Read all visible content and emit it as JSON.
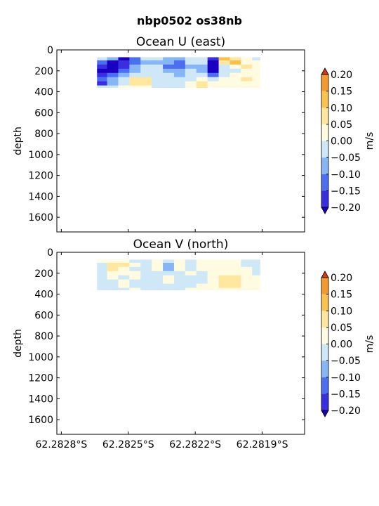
{
  "figure": {
    "title": "nbp0502 os38nb"
  },
  "colors": {
    "levels": [
      "#3a2fe0",
      "#4b6ff0",
      "#86b6f5",
      "#cfe8f7",
      "#fffbe0",
      "#ffe7a0",
      "#f8c24c",
      "#f29a2e",
      "#ea5a16"
    ],
    "under": "#1a00c0",
    "over": "#d83a0a",
    "frame": "#000000"
  },
  "chart_data": [
    {
      "type": "heatmap",
      "title": "Ocean U (east)",
      "xlabel": "",
      "ylabel": "depth",
      "yticks": [
        0,
        200,
        400,
        600,
        800,
        1000,
        1200,
        1400,
        1600
      ],
      "ylim": [
        1740,
        0
      ],
      "xticks": [
        "62.2828°S",
        "62.2825°S",
        "62.2822°S",
        "62.2819°S"
      ],
      "x_tick_values": [
        -62.2828,
        -62.2825,
        -62.2822,
        -62.2819
      ],
      "xlim": [
        -62.28282,
        -62.28171
      ],
      "data_x_range": [
        -62.28264,
        -62.28191
      ],
      "data_depth_range": [
        70,
        360
      ],
      "colorbar": {
        "label": "m/s",
        "ticks": [
          "0.20",
          "0.15",
          "0.10",
          "0.05",
          "0.00",
          "−0.05",
          "−0.10",
          "−0.15",
          "−0.20"
        ],
        "levels": [
          -0.2,
          -0.15,
          -0.1,
          -0.05,
          0.0,
          0.05,
          0.1,
          0.15,
          0.2
        ],
        "extend": "both"
      },
      "depths": [
        80,
        120,
        160,
        200,
        240,
        280,
        320,
        360
      ],
      "x": [
        -62.28262,
        -62.28257,
        -62.28252,
        -62.28247,
        -62.28242,
        -62.28237,
        -62.28232,
        -62.28227,
        -62.28222,
        -62.28217,
        -62.28212,
        -62.28207,
        -62.28202,
        -62.28197,
        -62.28192
      ],
      "values": [
        [
          -0.03,
          -0.08,
          -0.22,
          -0.14,
          -0.05,
          -0.04,
          -0.06,
          -0.1,
          -0.02,
          -0.03,
          -0.18,
          0.12,
          0.08,
          0.03,
          -0.02
        ],
        [
          -0.12,
          -0.22,
          -0.2,
          -0.12,
          -0.08,
          -0.07,
          -0.09,
          -0.12,
          -0.05,
          -0.04,
          -0.21,
          0.06,
          0.1,
          0.04,
          0.01
        ],
        [
          -0.18,
          -0.23,
          -0.16,
          -0.09,
          -0.05,
          -0.03,
          -0.11,
          -0.14,
          -0.06,
          -0.07,
          -0.23,
          -0.01,
          0.02,
          0.06,
          0.03
        ],
        [
          -0.22,
          -0.21,
          -0.12,
          -0.06,
          -0.04,
          -0.02,
          -0.08,
          -0.1,
          -0.04,
          -0.06,
          -0.22,
          -0.03,
          -0.02,
          0.04,
          0.01
        ],
        [
          -0.16,
          -0.14,
          -0.08,
          -0.03,
          -0.02,
          -0.03,
          -0.05,
          -0.06,
          -0.02,
          -0.04,
          -0.12,
          -0.02,
          0.02,
          0.03,
          0.04
        ],
        [
          -0.12,
          -0.1,
          -0.04,
          0.06,
          0.08,
          -0.02,
          -0.04,
          -0.03,
          -0.01,
          0.01,
          -0.04,
          0.02,
          0.03,
          0.05,
          0.02
        ],
        [
          -0.18,
          -0.06,
          -0.03,
          0.07,
          0.05,
          -0.01,
          -0.02,
          -0.02,
          0.01,
          0.07,
          0.03,
          0.02,
          0.01,
          0.03,
          0.01
        ],
        [
          -0.02,
          -0.01,
          0.01,
          0.04,
          0.02,
          -0.01,
          -0.02,
          -0.01,
          0.02,
          0.05,
          0.03,
          0.02,
          0.03,
          0.02,
          0.01
        ]
      ]
    },
    {
      "type": "heatmap",
      "title": "Ocean V (north)",
      "xlabel": "",
      "ylabel": "depth",
      "yticks": [
        0,
        200,
        400,
        600,
        800,
        1000,
        1200,
        1400,
        1600
      ],
      "ylim": [
        1740,
        0
      ],
      "xticks": [
        "62.2828°S",
        "62.2825°S",
        "62.2822°S",
        "62.2819°S"
      ],
      "x_tick_values": [
        -62.2828,
        -62.2825,
        -62.2822,
        -62.2819
      ],
      "xlim": [
        -62.28282,
        -62.28171
      ],
      "data_x_range": [
        -62.28264,
        -62.28191
      ],
      "data_depth_range": [
        70,
        360
      ],
      "colorbar": {
        "label": "m/s",
        "ticks": [
          "0.20",
          "0.15",
          "0.10",
          "0.05",
          "0.00",
          "−0.05",
          "−0.10",
          "−0.15",
          "−0.20"
        ],
        "levels": [
          -0.2,
          -0.15,
          -0.1,
          -0.05,
          0.0,
          0.05,
          0.1,
          0.15,
          0.2
        ],
        "extend": "both"
      },
      "depths": [
        80,
        120,
        160,
        200,
        240,
        280,
        320,
        360
      ],
      "x": [
        -62.28262,
        -62.28257,
        -62.28252,
        -62.28247,
        -62.28242,
        -62.28237,
        -62.28232,
        -62.28227,
        -62.28222,
        -62.28217,
        -62.28212,
        -62.28207,
        -62.28202,
        -62.28197,
        -62.28192
      ],
      "values": [
        [
          0.01,
          0.02,
          0.03,
          -0.02,
          -0.03,
          0.01,
          -0.04,
          0.02,
          -0.02,
          0.01,
          0.02,
          0.03,
          0.01,
          -0.02,
          -0.03
        ],
        [
          -0.01,
          0.06,
          0.07,
          0.02,
          -0.04,
          0.02,
          -0.06,
          0.03,
          -0.03,
          0.02,
          0.03,
          0.02,
          0.02,
          -0.03,
          -0.02
        ],
        [
          -0.02,
          0.07,
          0.04,
          -0.02,
          -0.03,
          0.03,
          -0.07,
          0.02,
          -0.04,
          0.03,
          0.01,
          0.03,
          0.02,
          0.01,
          -0.02
        ],
        [
          -0.03,
          0.02,
          0.01,
          0.03,
          -0.05,
          -0.02,
          -0.02,
          -0.03,
          0.02,
          -0.01,
          0.04,
          0.03,
          0.04,
          0.02,
          -0.01
        ],
        [
          -0.01,
          0.02,
          -0.03,
          0.01,
          -0.03,
          -0.04,
          0.02,
          -0.02,
          -0.03,
          -0.02,
          0.03,
          0.07,
          0.06,
          0.03,
          0.02
        ],
        [
          -0.02,
          -0.03,
          0.01,
          -0.02,
          -0.04,
          -0.02,
          0.02,
          -0.04,
          -0.02,
          -0.01,
          0.02,
          0.06,
          0.07,
          0.04,
          0.01
        ],
        [
          -0.03,
          -0.02,
          0.01,
          -0.03,
          -0.02,
          -0.01,
          -0.03,
          -0.02,
          -0.03,
          0.01,
          0.02,
          0.06,
          0.05,
          0.04,
          0.01
        ],
        [
          -0.02,
          -0.01,
          -0.01,
          0.01,
          -0.01,
          -0.02,
          -0.01,
          -0.02,
          0.01,
          0.01,
          0.02,
          0.03,
          0.02,
          0.03,
          0.01
        ]
      ]
    }
  ]
}
